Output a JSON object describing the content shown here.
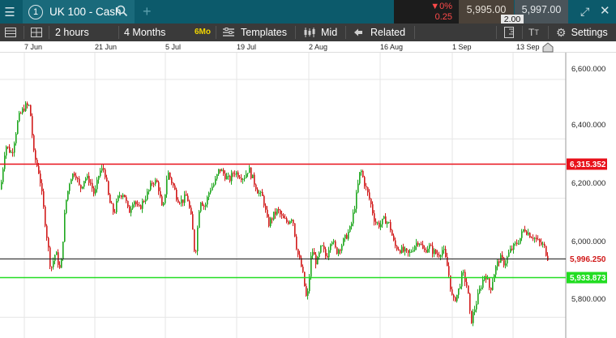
{
  "window": {
    "tab_number": "1",
    "tab_title": "UK 100 - Cash",
    "change_pct": "▼0%",
    "change_value": "0.25",
    "sell_price": "5,995.00",
    "buy_price": "5,997.00",
    "spread": "2.00"
  },
  "toolbar": {
    "interval": "2 hours",
    "range": "4 Months",
    "range_badge": "6Mo",
    "templates": "Templates",
    "price_type": "Mid",
    "related": "Related",
    "settings": "Settings"
  },
  "date_axis": [
    "7 Jun",
    "21 Jun",
    "5 Jul",
    "19 Jul",
    "2 Aug",
    "16 Aug",
    "1 Sep",
    "13 Sep"
  ],
  "price_axis": [
    "6,600.000",
    "6,400.000",
    "6,200.000",
    "6,000.000",
    "5,800.000"
  ],
  "chart_data": {
    "type": "candlestick",
    "ylim": [
      5730,
      6690
    ],
    "yticks": [
      6600,
      6400,
      6200,
      6000,
      5800
    ],
    "xticks": [
      "7 Jun",
      "21 Jun",
      "5 Jul",
      "19 Jul",
      "2 Aug",
      "16 Aug",
      "1 Sep",
      "13 Sep"
    ],
    "up_color": "#1fa71f",
    "down_color": "#d11a1a",
    "lines": [
      {
        "name": "resistance",
        "value": 6315.352,
        "label": "6,315.352",
        "color": "#e8101a"
      },
      {
        "name": "current",
        "value": 5996.25,
        "label": "5,996.250",
        "color": "#222222"
      },
      {
        "name": "support",
        "value": 5933.873,
        "label": "5,933.873",
        "color": "#22dd22"
      }
    ],
    "path": [
      [
        0,
        6230
      ],
      [
        6,
        6380
      ],
      [
        14,
        6350
      ],
      [
        22,
        6470
      ],
      [
        30,
        6510
      ],
      [
        36,
        6510
      ],
      [
        41,
        6350
      ],
      [
        48,
        6280
      ],
      [
        55,
        6120
      ],
      [
        62,
        5960
      ],
      [
        68,
        6020
      ],
      [
        74,
        5950
      ],
      [
        80,
        6180
      ],
      [
        86,
        6270
      ],
      [
        92,
        6290
      ],
      [
        98,
        6230
      ],
      [
        104,
        6270
      ],
      [
        110,
        6260
      ],
      [
        116,
        6210
      ],
      [
        122,
        6290
      ],
      [
        128,
        6300
      ],
      [
        134,
        6190
      ],
      [
        140,
        6150
      ],
      [
        146,
        6210
      ],
      [
        152,
        6220
      ],
      [
        158,
        6150
      ],
      [
        164,
        6200
      ],
      [
        170,
        6160
      ],
      [
        176,
        6190
      ],
      [
        182,
        6220
      ],
      [
        188,
        6260
      ],
      [
        194,
        6250
      ],
      [
        200,
        6150
      ],
      [
        206,
        6290
      ],
      [
        212,
        6250
      ],
      [
        218,
        6200
      ],
      [
        224,
        6190
      ],
      [
        230,
        6210
      ],
      [
        236,
        6120
      ],
      [
        240,
        6000
      ],
      [
        246,
        6200
      ],
      [
        252,
        6170
      ],
      [
        258,
        6230
      ],
      [
        264,
        6250
      ],
      [
        270,
        6300
      ],
      [
        276,
        6280
      ],
      [
        282,
        6260
      ],
      [
        288,
        6290
      ],
      [
        294,
        6280
      ],
      [
        300,
        6270
      ],
      [
        306,
        6300
      ],
      [
        312,
        6260
      ],
      [
        318,
        6220
      ],
      [
        324,
        6200
      ],
      [
        330,
        6110
      ],
      [
        336,
        6140
      ],
      [
        342,
        6160
      ],
      [
        348,
        6130
      ],
      [
        354,
        6120
      ],
      [
        360,
        6140
      ],
      [
        366,
        6020
      ],
      [
        372,
        5960
      ],
      [
        378,
        5850
      ],
      [
        384,
        6030
      ],
      [
        390,
        5980
      ],
      [
        396,
        6040
      ],
      [
        402,
        6000
      ],
      [
        408,
        6070
      ],
      [
        414,
        6020
      ],
      [
        420,
        6040
      ],
      [
        426,
        6070
      ],
      [
        432,
        6100
      ],
      [
        438,
        6190
      ],
      [
        444,
        6300
      ],
      [
        450,
        6240
      ],
      [
        456,
        6190
      ],
      [
        462,
        6120
      ],
      [
        468,
        6110
      ],
      [
        474,
        6130
      ],
      [
        480,
        6110
      ],
      [
        486,
        6040
      ],
      [
        492,
        6030
      ],
      [
        498,
        6020
      ],
      [
        504,
        6010
      ],
      [
        510,
        6040
      ],
      [
        516,
        6060
      ],
      [
        522,
        6020
      ],
      [
        528,
        6040
      ],
      [
        534,
        6020
      ],
      [
        540,
        6010
      ],
      [
        546,
        6030
      ],
      [
        552,
        5960
      ],
      [
        558,
        5850
      ],
      [
        564,
        5880
      ],
      [
        570,
        5950
      ],
      [
        576,
        5900
      ],
      [
        580,
        5780
      ],
      [
        586,
        5840
      ],
      [
        592,
        5900
      ],
      [
        598,
        5950
      ],
      [
        604,
        5890
      ],
      [
        610,
        5960
      ],
      [
        616,
        6000
      ],
      [
        622,
        5980
      ],
      [
        628,
        6020
      ],
      [
        634,
        6040
      ],
      [
        640,
        6060
      ],
      [
        646,
        6100
      ],
      [
        652,
        6080
      ],
      [
        658,
        6070
      ],
      [
        664,
        6050
      ],
      [
        670,
        6040
      ],
      [
        676,
        5995
      ]
    ]
  }
}
